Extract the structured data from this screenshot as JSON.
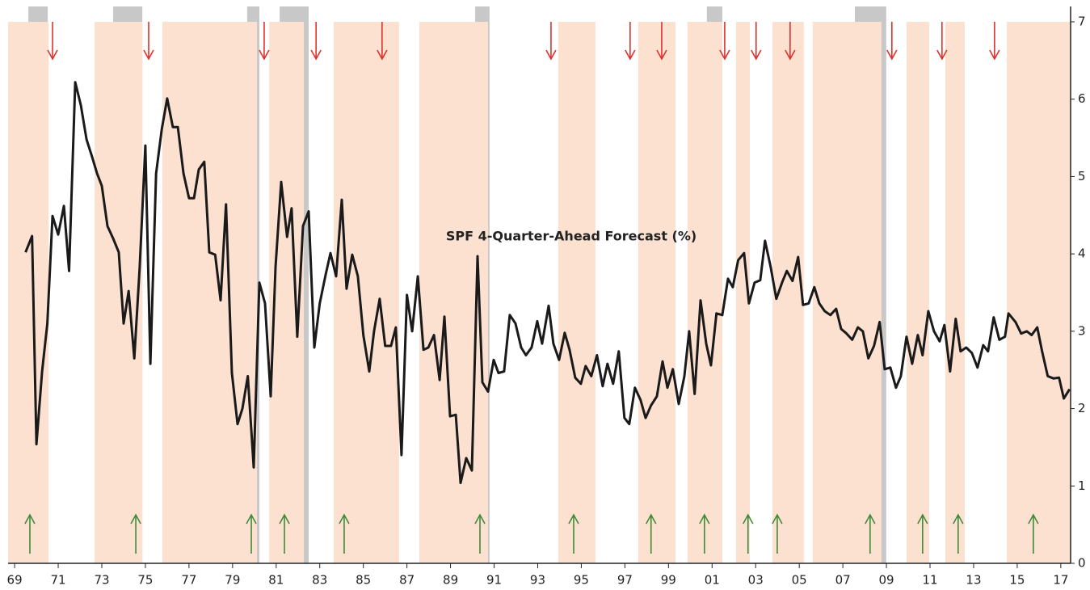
{
  "chart_data": {
    "type": "line",
    "annotation": "SPF 4-Quarter-Ahead Forecast (%)",
    "color": "#1a1a1a",
    "band_color": "#fce1d1",
    "recession_color": "#c8c8c8",
    "down_arrow_color": "#e0302a",
    "up_arrow_color": "#3f8a3a",
    "xlim": [
      1968.7,
      2017.45
    ],
    "ylim": [
      0,
      7
    ],
    "yticks": [
      0,
      1,
      2,
      3,
      4,
      5,
      6,
      7
    ],
    "xticks": [
      {
        "value": 1969,
        "label": "69"
      },
      {
        "value": 1971,
        "label": "71"
      },
      {
        "value": 1973,
        "label": "73"
      },
      {
        "value": 1975,
        "label": "75"
      },
      {
        "value": 1977,
        "label": "77"
      },
      {
        "value": 1979,
        "label": "79"
      },
      {
        "value": 1981,
        "label": "81"
      },
      {
        "value": 1983,
        "label": "83"
      },
      {
        "value": 1985,
        "label": "85"
      },
      {
        "value": 1987,
        "label": "87"
      },
      {
        "value": 1989,
        "label": "89"
      },
      {
        "value": 1991,
        "label": "91"
      },
      {
        "value": 1993,
        "label": "93"
      },
      {
        "value": 1995,
        "label": "95"
      },
      {
        "value": 1997,
        "label": "97"
      },
      {
        "value": 1999,
        "label": "99"
      },
      {
        "value": 2001,
        "label": "01"
      },
      {
        "value": 2003,
        "label": "03"
      },
      {
        "value": 2005,
        "label": "05"
      },
      {
        "value": 2007,
        "label": "07"
      },
      {
        "value": 2009,
        "label": "09"
      },
      {
        "value": 2011,
        "label": "11"
      },
      {
        "value": 2013,
        "label": "13"
      },
      {
        "value": 2015,
        "label": "15"
      },
      {
        "value": 2017,
        "label": "17"
      }
    ],
    "recessions": [
      [
        1969.63,
        1970.52
      ],
      [
        1973.52,
        1974.86
      ],
      [
        1979.67,
        1980.23
      ],
      [
        1981.16,
        1982.49
      ],
      [
        1990.13,
        1990.79
      ],
      [
        2000.76,
        2001.47
      ],
      [
        2007.55,
        2008.99
      ]
    ],
    "bands": [
      [
        1968.7,
        1970.56
      ],
      [
        1972.67,
        1974.86
      ],
      [
        1975.78,
        1980.12
      ],
      [
        1980.68,
        1982.27
      ],
      [
        1983.64,
        1986.64
      ],
      [
        1987.57,
        1990.72
      ],
      [
        1993.94,
        1995.65
      ],
      [
        1997.61,
        1999.32
      ],
      [
        1999.87,
        2001.47
      ],
      [
        2002.1,
        2002.73
      ],
      [
        2003.77,
        2005.21
      ],
      [
        2005.62,
        2008.77
      ],
      [
        2009.92,
        2010.96
      ],
      [
        2011.7,
        2012.59
      ],
      [
        2014.52,
        2017.45
      ]
    ],
    "down_arrows": [
      1970.74,
      1975.15,
      1980.45,
      1982.83,
      1985.86,
      1993.61,
      1997.24,
      1998.69,
      2001.58,
      2003.02,
      2004.58,
      2009.25,
      2011.55,
      2013.96
    ],
    "up_arrows": [
      1969.7,
      1974.56,
      1979.86,
      1981.38,
      1984.12,
      1990.35,
      1994.65,
      1998.2,
      2000.65,
      2002.65,
      2003.99,
      2008.25,
      2010.66,
      2012.29,
      2015.74
    ],
    "x": [
      1969.5,
      1969.8,
      1970.0,
      1970.26,
      1970.5,
      1970.74,
      1971.0,
      1971.26,
      1971.5,
      1971.78,
      1972.04,
      1972.3,
      1972.56,
      1972.78,
      1973.0,
      1973.26,
      1973.52,
      1973.78,
      1974.0,
      1974.23,
      1974.49,
      1974.74,
      1975.0,
      1975.23,
      1975.49,
      1975.75,
      1976.0,
      1976.26,
      1976.49,
      1976.75,
      1977.0,
      1977.23,
      1977.45,
      1977.7,
      1977.93,
      1978.2,
      1978.45,
      1978.7,
      1978.97,
      1979.23,
      1979.45,
      1979.7,
      1979.97,
      1980.23,
      1980.49,
      1980.75,
      1980.97,
      1981.23,
      1981.5,
      1981.71,
      1981.97,
      1982.23,
      1982.49,
      1982.75,
      1983.0,
      1983.27,
      1983.49,
      1983.75,
      1984.01,
      1984.23,
      1984.49,
      1984.75,
      1985.0,
      1985.27,
      1985.49,
      1985.75,
      1986.0,
      1986.27,
      1986.49,
      1986.75,
      1987.0,
      1987.24,
      1987.5,
      1987.76,
      1987.98,
      1988.24,
      1988.5,
      1988.72,
      1988.98,
      1989.24,
      1989.46,
      1989.72,
      1989.98,
      1990.24,
      1990.46,
      1990.72,
      1990.98,
      1991.2,
      1991.46,
      1991.72,
      1991.98,
      1992.24,
      1992.46,
      1992.72,
      1992.98,
      1993.2,
      1993.5,
      1993.72,
      1993.98,
      1994.24,
      1994.46,
      1994.72,
      1994.98,
      1995.2,
      1995.46,
      1995.72,
      1995.98,
      1996.2,
      1996.46,
      1996.72,
      1996.98,
      1997.2,
      1997.46,
      1997.72,
      1997.95,
      1998.2,
      1998.47,
      1998.73,
      1998.95,
      1999.2,
      1999.47,
      1999.73,
      1999.95,
      2000.2,
      2000.47,
      2000.73,
      2000.95,
      2001.2,
      2001.47,
      2001.73,
      2001.95,
      2002.2,
      2002.47,
      2002.69,
      2002.95,
      2003.21,
      2003.43,
      2003.69,
      2003.95,
      2004.21,
      2004.43,
      2004.69,
      2004.95,
      2005.17,
      2005.43,
      2005.69,
      2005.92,
      2006.17,
      2006.43,
      2006.69,
      2006.92,
      2007.17,
      2007.43,
      2007.69,
      2007.92,
      2008.17,
      2008.43,
      2008.69,
      2008.92,
      2009.18,
      2009.44,
      2009.66,
      2009.92,
      2010.18,
      2010.44,
      2010.66,
      2010.92,
      2011.18,
      2011.44,
      2011.66,
      2011.92,
      2012.18,
      2012.4,
      2012.66,
      2012.92,
      2013.18,
      2013.44,
      2013.66,
      2013.92,
      2014.18,
      2014.44,
      2014.6,
      2014.92,
      2015.18,
      2015.44,
      2015.66,
      2015.92,
      2016.14,
      2016.4,
      2016.66,
      2016.92,
      2017.14,
      2017.4
    ],
    "values": [
      4.02,
      4.23,
      1.54,
      2.48,
      3.1,
      4.49,
      4.25,
      4.62,
      3.78,
      6.22,
      5.92,
      5.48,
      5.25,
      5.04,
      4.88,
      4.36,
      4.2,
      4.02,
      3.1,
      3.52,
      2.65,
      3.83,
      5.4,
      2.58,
      5.04,
      5.61,
      6.01,
      5.64,
      5.64,
      5.04,
      4.72,
      4.72,
      5.09,
      5.19,
      4.02,
      3.99,
      3.4,
      4.64,
      2.46,
      1.8,
      2.0,
      2.42,
      1.24,
      3.63,
      3.36,
      2.16,
      3.83,
      4.93,
      4.22,
      4.59,
      2.93,
      4.36,
      4.55,
      2.79,
      3.36,
      3.73,
      4.01,
      3.71,
      4.7,
      3.55,
      3.99,
      3.71,
      2.95,
      2.48,
      3.0,
      3.42,
      2.81,
      2.81,
      3.05,
      1.4,
      3.47,
      3.0,
      3.71,
      2.76,
      2.79,
      2.95,
      2.37,
      3.19,
      1.9,
      1.92,
      1.04,
      1.36,
      1.2,
      3.97,
      2.34,
      2.22,
      2.63,
      2.46,
      2.48,
      3.21,
      3.1,
      2.79,
      2.69,
      2.79,
      3.13,
      2.84,
      3.33,
      2.84,
      2.63,
      2.98,
      2.76,
      2.4,
      2.32,
      2.55,
      2.42,
      2.69,
      2.29,
      2.58,
      2.32,
      2.74,
      1.88,
      1.8,
      2.27,
      2.11,
      1.88,
      2.04,
      2.16,
      2.61,
      2.27,
      2.51,
      2.06,
      2.42,
      3.0,
      2.19,
      3.4,
      2.84,
      2.56,
      3.23,
      3.21,
      3.68,
      3.57,
      3.92,
      4.01,
      3.36,
      3.63,
      3.66,
      4.17,
      3.83,
      3.42,
      3.63,
      3.78,
      3.65,
      3.96,
      3.34,
      3.36,
      3.57,
      3.36,
      3.26,
      3.21,
      3.29,
      3.03,
      2.97,
      2.89,
      3.05,
      3.0,
      2.65,
      2.81,
      3.12,
      2.51,
      2.53,
      2.27,
      2.42,
      2.93,
      2.58,
      2.95,
      2.69,
      3.26,
      3.0,
      2.87,
      3.08,
      2.48,
      3.16,
      2.74,
      2.79,
      2.72,
      2.53,
      2.82,
      2.74,
      3.18,
      2.89,
      2.93,
      3.23,
      3.12,
      2.97,
      3.0,
      2.95,
      3.05,
      2.74,
      2.42,
      2.39,
      2.4,
      2.13,
      2.25
    ]
  }
}
